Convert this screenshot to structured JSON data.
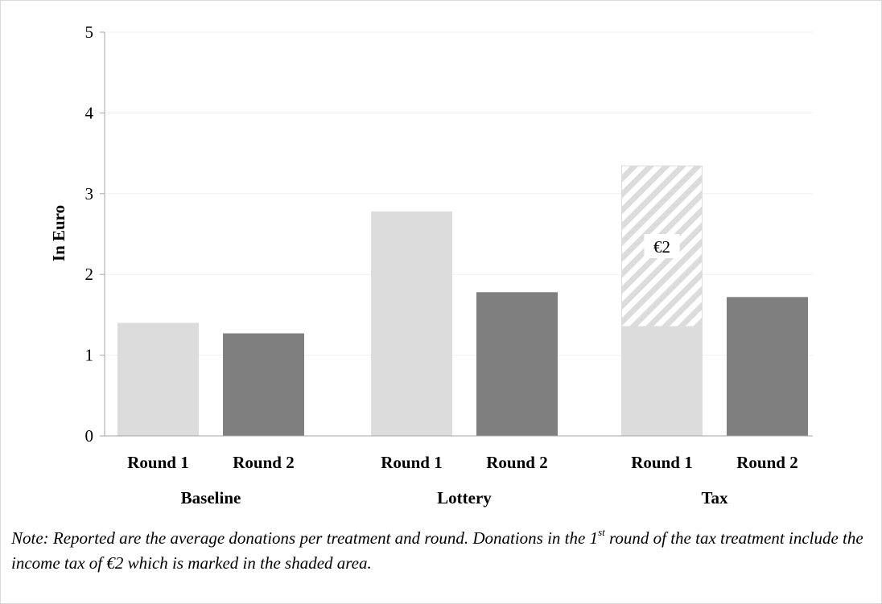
{
  "chart_data": {
    "type": "bar",
    "ylabel": "In Euro",
    "ylim": [
      0,
      5
    ],
    "yticks": [
      "0",
      "1",
      "2",
      "3",
      "4",
      "5"
    ],
    "grid": true,
    "groups": [
      {
        "name": "Baseline",
        "bars": [
          {
            "label": "Round 1",
            "value": 1.4
          },
          {
            "label": "Round 2",
            "value": 1.27
          }
        ]
      },
      {
        "name": "Lottery",
        "bars": [
          {
            "label": "Round 1",
            "value": 2.78
          },
          {
            "label": "Round 2",
            "value": 1.78
          }
        ]
      },
      {
        "name": "Tax",
        "bars": [
          {
            "label": "Round 1",
            "value": 3.35,
            "shaded_portion": 2.0,
            "shaded_label": "€2"
          },
          {
            "label": "Round 2",
            "value": 1.72
          }
        ]
      }
    ],
    "colors": {
      "round1": "#dcdcdc",
      "round2": "#7f7f7f",
      "grid": "#f0f0f0",
      "axis": "#a6a6a6",
      "hatch_stripe": "#dcdcdc",
      "hatch_bg": "#ffffff"
    }
  },
  "note": {
    "part1": "Note: Reported are the average donations per treatment and round. Donations in the 1",
    "sup": "st",
    "part2": " round of the tax treatment include the income tax of €2 which is marked in the shaded area."
  }
}
